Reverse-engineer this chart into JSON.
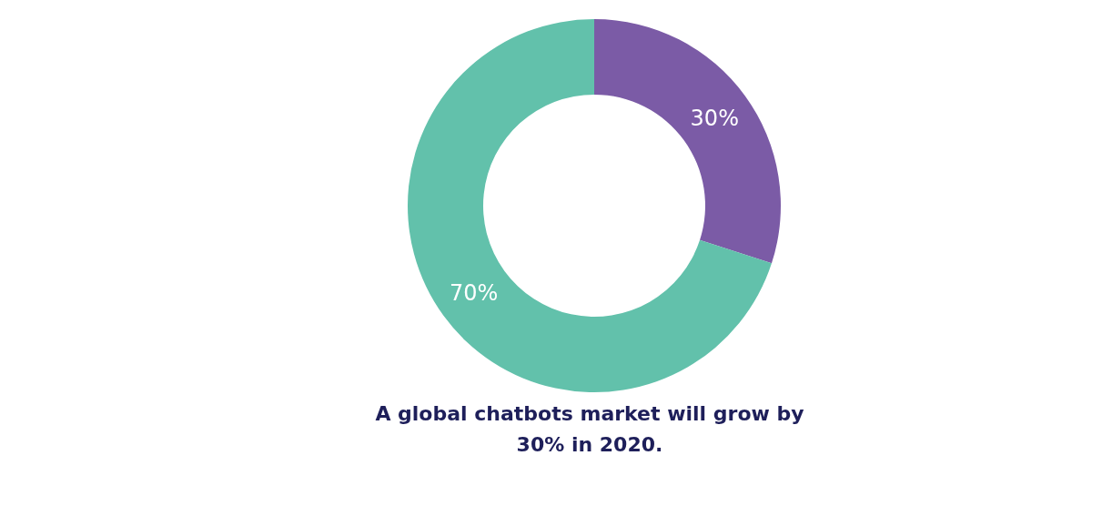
{
  "chart_data": {
    "type": "donut",
    "title": "A global chatbots market will grow by 30% in 2020.",
    "categories": [
      null,
      null
    ],
    "values": [
      30,
      70
    ],
    "colors": [
      "#7b5ba6",
      "#62c1ab"
    ],
    "value_labels": [
      "30%",
      "70%"
    ]
  }
}
